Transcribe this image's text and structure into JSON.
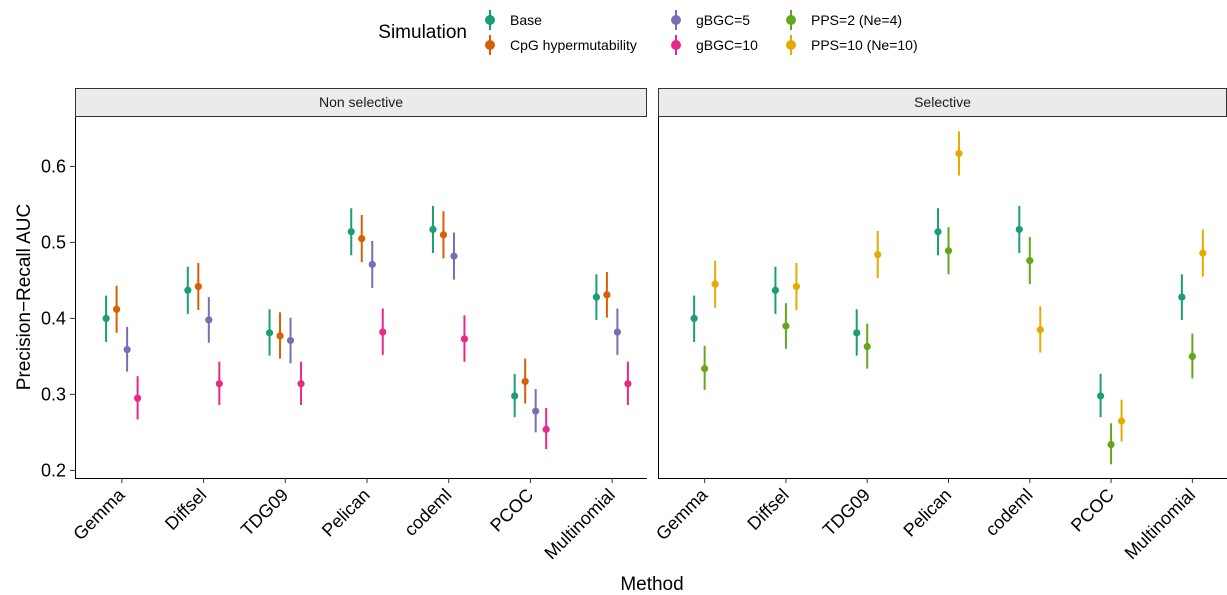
{
  "chart_data": {
    "type": "scatter",
    "ylabel": "Precision−Recall AUC",
    "xlabel": "Method",
    "ylim": [
      0.19,
      0.665
    ],
    "yticks": [
      "0.2",
      "0.3",
      "0.4",
      "0.5",
      "0.6"
    ],
    "yticks_values": [
      0.2,
      0.3,
      0.4,
      0.5,
      0.6
    ],
    "categories": [
      "Gemma",
      "Diffsel",
      "TDG09",
      "Pelican",
      "codeml",
      "PCOC",
      "Multinomial"
    ],
    "grid": false,
    "legend": {
      "title": "Simulation",
      "position": "top",
      "entries": [
        "Base",
        "CpG hypermutability",
        "gBGC=5",
        "gBGC=10",
        "PPS=2 (Ne=4)",
        "PPS=10 (Ne=10)"
      ]
    },
    "colors": {
      "Base": "#1b9e77",
      "CpG hypermutability": "#d95f02",
      "gBGC=5": "#7570b3",
      "gBGC=10": "#e7298a",
      "PPS=2 (Ne=4)": "#66a61e",
      "PPS=10 (Ne=10)": "#e6ab02"
    },
    "panels": [
      {
        "title": "Non selective",
        "series": [
          {
            "name": "Base",
            "values": [
              0.4,
              0.437,
              0.381,
              0.514,
              0.517,
              0.298,
              0.428
            ],
            "lower": [
              0.369,
              0.406,
              0.351,
              0.483,
              0.486,
              0.27,
              0.398
            ],
            "upper": [
              0.43,
              0.468,
              0.412,
              0.545,
              0.548,
              0.327,
              0.458
            ]
          },
          {
            "name": "CpG hypermutability",
            "values": [
              0.412,
              0.442,
              0.377,
              0.505,
              0.51,
              0.317,
              0.431
            ],
            "lower": [
              0.381,
              0.411,
              0.347,
              0.474,
              0.479,
              0.288,
              0.401
            ],
            "upper": [
              0.443,
              0.473,
              0.408,
              0.536,
              0.541,
              0.347,
              0.461
            ]
          },
          {
            "name": "gBGC=5",
            "values": [
              0.359,
              0.398,
              0.371,
              0.471,
              0.482,
              0.278,
              0.382
            ],
            "lower": [
              0.33,
              0.368,
              0.341,
              0.44,
              0.451,
              0.25,
              0.352
            ],
            "upper": [
              0.389,
              0.428,
              0.401,
              0.502,
              0.513,
              0.307,
              0.413
            ]
          },
          {
            "name": "gBGC=10",
            "values": [
              0.295,
              0.314,
              0.314,
              0.382,
              0.373,
              0.254,
              0.314
            ],
            "lower": [
              0.267,
              0.286,
              0.286,
              0.352,
              0.343,
              0.228,
              0.286
            ],
            "upper": [
              0.324,
              0.343,
              0.343,
              0.413,
              0.404,
              0.282,
              0.343
            ]
          }
        ]
      },
      {
        "title": "Selective",
        "series": [
          {
            "name": "Base",
            "values": [
              0.4,
              0.437,
              0.381,
              0.514,
              0.517,
              0.298,
              0.428
            ],
            "lower": [
              0.369,
              0.406,
              0.351,
              0.483,
              0.486,
              0.27,
              0.398
            ],
            "upper": [
              0.43,
              0.468,
              0.412,
              0.545,
              0.548,
              0.327,
              0.458
            ]
          },
          {
            "name": "PPS=2 (Ne=4)",
            "values": [
              0.334,
              0.39,
              0.363,
              0.489,
              0.476,
              0.234,
              0.35
            ],
            "lower": [
              0.306,
              0.36,
              0.334,
              0.458,
              0.445,
              0.208,
              0.321
            ],
            "upper": [
              0.364,
              0.42,
              0.393,
              0.52,
              0.507,
              0.262,
              0.38
            ]
          },
          {
            "name": "PPS=10 (Ne=10)",
            "values": [
              0.445,
              0.442,
              0.484,
              0.617,
              0.385,
              0.265,
              0.486
            ],
            "lower": [
              0.414,
              0.411,
              0.453,
              0.588,
              0.355,
              0.238,
              0.455
            ],
            "upper": [
              0.476,
              0.473,
              0.515,
              0.646,
              0.416,
              0.293,
              0.517
            ]
          }
        ]
      }
    ]
  }
}
